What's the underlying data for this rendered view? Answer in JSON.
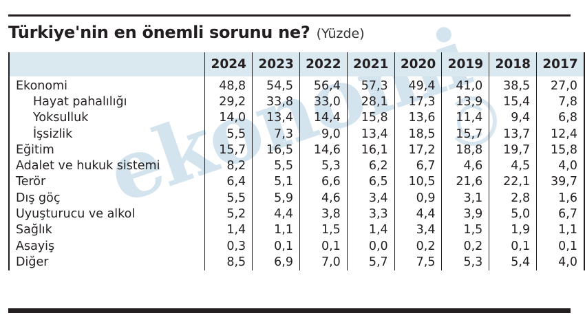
{
  "title": "Türkiye'nin en önemli sorunu ne?",
  "unit": "(Yüzde)",
  "watermark": "ekonomi",
  "colors": {
    "header_bg": "#dae8f0",
    "text": "#231f20",
    "watermark": "#d3e4ee"
  },
  "table": {
    "columns": [
      "",
      "2024",
      "2023",
      "2022",
      "2021",
      "2020",
      "2019",
      "2018",
      "2017"
    ],
    "rows": [
      {
        "label": "Ekonomi",
        "indent": false,
        "values": [
          "48,8",
          "54,5",
          "56,4",
          "57,3",
          "49,4",
          "41,0",
          "38,5",
          "27,0"
        ]
      },
      {
        "label": "Hayat pahalılığı",
        "indent": true,
        "values": [
          "29,2",
          "33,8",
          "33,0",
          "28,1",
          "17,3",
          "13,9",
          "15,4",
          "7,8"
        ]
      },
      {
        "label": "Yoksulluk",
        "indent": true,
        "values": [
          "14,0",
          "13,4",
          "14,4",
          "15,8",
          "13,6",
          "11,4",
          "9,4",
          "6,8"
        ]
      },
      {
        "label": "İşsizlik",
        "indent": true,
        "values": [
          "5,5",
          "7,3",
          "9,0",
          "13,4",
          "18,5",
          "15,7",
          "13,7",
          "12,4"
        ]
      },
      {
        "label": "Eğitim",
        "indent": false,
        "values": [
          "15,7",
          "16,5",
          "14,6",
          "16,1",
          "17,2",
          "18,8",
          "19,7",
          "15,8"
        ]
      },
      {
        "label": "Adalet ve hukuk sistemi",
        "indent": false,
        "values": [
          "8,2",
          "5,5",
          "5,3",
          "6,2",
          "6,7",
          "4,6",
          "4,5",
          "4,0"
        ]
      },
      {
        "label": "Terör",
        "indent": false,
        "values": [
          "6,4",
          "5,1",
          "6,6",
          "6,5",
          "10,5",
          "21,6",
          "22,1",
          "39,7"
        ]
      },
      {
        "label": "Dış göç",
        "indent": false,
        "values": [
          "5,5",
          "5,9",
          "4,6",
          "3,4",
          "0,9",
          "3,1",
          "2,8",
          "1,6"
        ]
      },
      {
        "label": "Uyuşturucu ve alkol",
        "indent": false,
        "values": [
          "5,2",
          "4,4",
          "3,8",
          "3,3",
          "4,4",
          "3,9",
          "5,0",
          "6,7"
        ]
      },
      {
        "label": "Sağlık",
        "indent": false,
        "values": [
          "1,4",
          "1,1",
          "1,5",
          "1,4",
          "3,4",
          "1,5",
          "1,9",
          "1,1"
        ]
      },
      {
        "label": "Asayiş",
        "indent": false,
        "values": [
          "0,3",
          "0,1",
          "0,1",
          "0,0",
          "0,2",
          "0,2",
          "0,1",
          "0,1"
        ]
      },
      {
        "label": "Diğer",
        "indent": false,
        "values": [
          "8,5",
          "6,9",
          "7,0",
          "5,7",
          "7,5",
          "5,3",
          "5,4",
          "4,0"
        ]
      }
    ]
  },
  "chart_data": {
    "type": "table",
    "title": "Türkiye'nin en önemli sorunu ne?",
    "subtitle": "(Yüzde)",
    "categories": [
      "Ekonomi",
      "Hayat pahalılığı",
      "Yoksulluk",
      "İşsizlik",
      "Eğitim",
      "Adalet ve hukuk sistemi",
      "Terör",
      "Dış göç",
      "Uyuşturucu ve alkol",
      "Sağlık",
      "Asayiş",
      "Diğer"
    ],
    "series": [
      {
        "name": "2024",
        "values": [
          48.8,
          29.2,
          14.0,
          5.5,
          15.7,
          8.2,
          6.4,
          5.5,
          5.2,
          1.4,
          0.3,
          8.5
        ]
      },
      {
        "name": "2023",
        "values": [
          54.5,
          33.8,
          13.4,
          7.3,
          16.5,
          5.5,
          5.1,
          5.9,
          4.4,
          1.1,
          0.1,
          6.9
        ]
      },
      {
        "name": "2022",
        "values": [
          56.4,
          33.0,
          14.4,
          9.0,
          14.6,
          5.3,
          6.6,
          4.6,
          3.8,
          1.5,
          0.1,
          7.0
        ]
      },
      {
        "name": "2021",
        "values": [
          57.3,
          28.1,
          15.8,
          13.4,
          16.1,
          6.2,
          6.5,
          3.4,
          3.3,
          1.4,
          0.0,
          5.7
        ]
      },
      {
        "name": "2020",
        "values": [
          49.4,
          17.3,
          13.6,
          18.5,
          17.2,
          6.7,
          10.5,
          0.9,
          4.4,
          3.4,
          0.2,
          7.5
        ]
      },
      {
        "name": "2019",
        "values": [
          41.0,
          13.9,
          11.4,
          15.7,
          18.8,
          4.6,
          21.6,
          3.1,
          3.9,
          1.5,
          0.2,
          5.3
        ]
      },
      {
        "name": "2018",
        "values": [
          38.5,
          15.4,
          9.4,
          13.7,
          19.7,
          4.5,
          22.1,
          2.8,
          5.0,
          1.9,
          0.1,
          5.4
        ]
      },
      {
        "name": "2017",
        "values": [
          27.0,
          7.8,
          6.8,
          12.4,
          15.8,
          4.0,
          39.7,
          1.6,
          6.7,
          1.1,
          0.1,
          4.0
        ]
      }
    ],
    "notes": "Hayat pahalılığı, Yoksulluk, İşsizlik are indented sub-items of Ekonomi"
  }
}
